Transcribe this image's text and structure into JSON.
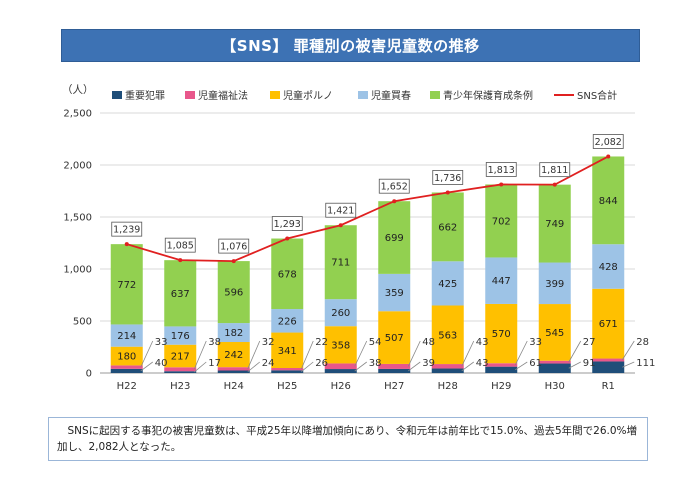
{
  "title": "【SNS】 罪種別の被害児童数の推移",
  "note": "　SNSに起因する事犯の被害児童数は、平成25年以降増加傾向にあり、令和元年は前年比で15.0%、過去5年間で26.0%増加し、2,082人となった。",
  "colors": {
    "title_bg": "#3d72b4",
    "serious": "#1f4e79",
    "welfare": "#e8578b",
    "porn": "#ffc000",
    "prostitution": "#9dc3e6",
    "youth": "#92d050",
    "total": "#e02020"
  },
  "chart_data": {
    "type": "bar",
    "stacked": true,
    "unit_label": "（人）",
    "categories": [
      "H22",
      "H23",
      "H24",
      "H25",
      "H26",
      "H27",
      "H28",
      "H29",
      "H30",
      "R1"
    ],
    "ylim": [
      0,
      2500
    ],
    "yticks": [
      0,
      500,
      1000,
      1500,
      2000,
      2500
    ],
    "ytick_labels": [
      "0",
      "500",
      "1,000",
      "1,500",
      "2,000",
      "2,500"
    ],
    "grid": true,
    "legend_position": "top",
    "series": [
      {
        "name": "重要犯罪",
        "key": "serious",
        "values": [
          40,
          17,
          24,
          26,
          38,
          39,
          43,
          61,
          91,
          111
        ]
      },
      {
        "name": "児童福祉法",
        "key": "welfare",
        "values": [
          33,
          38,
          32,
          22,
          54,
          48,
          43,
          33,
          27,
          28
        ]
      },
      {
        "name": "児童ポルノ",
        "key": "porn",
        "values": [
          180,
          217,
          242,
          341,
          358,
          507,
          563,
          570,
          545,
          671
        ]
      },
      {
        "name": "児童買春",
        "key": "prostitution",
        "values": [
          214,
          176,
          182,
          226,
          260,
          359,
          425,
          447,
          399,
          428
        ]
      },
      {
        "name": "青少年保護育成条例",
        "key": "youth",
        "values": [
          772,
          637,
          596,
          678,
          711,
          699,
          662,
          702,
          749,
          844
        ]
      }
    ],
    "line": {
      "name": "SNS合計",
      "values": [
        1239,
        1085,
        1076,
        1293,
        1421,
        1652,
        1736,
        1813,
        1811,
        2082
      ],
      "labels": [
        "1,239",
        "1,085",
        "1,076",
        "1,293",
        "1,421",
        "1,652",
        "1,736",
        "1,813",
        "1,811",
        "2,082"
      ]
    }
  }
}
